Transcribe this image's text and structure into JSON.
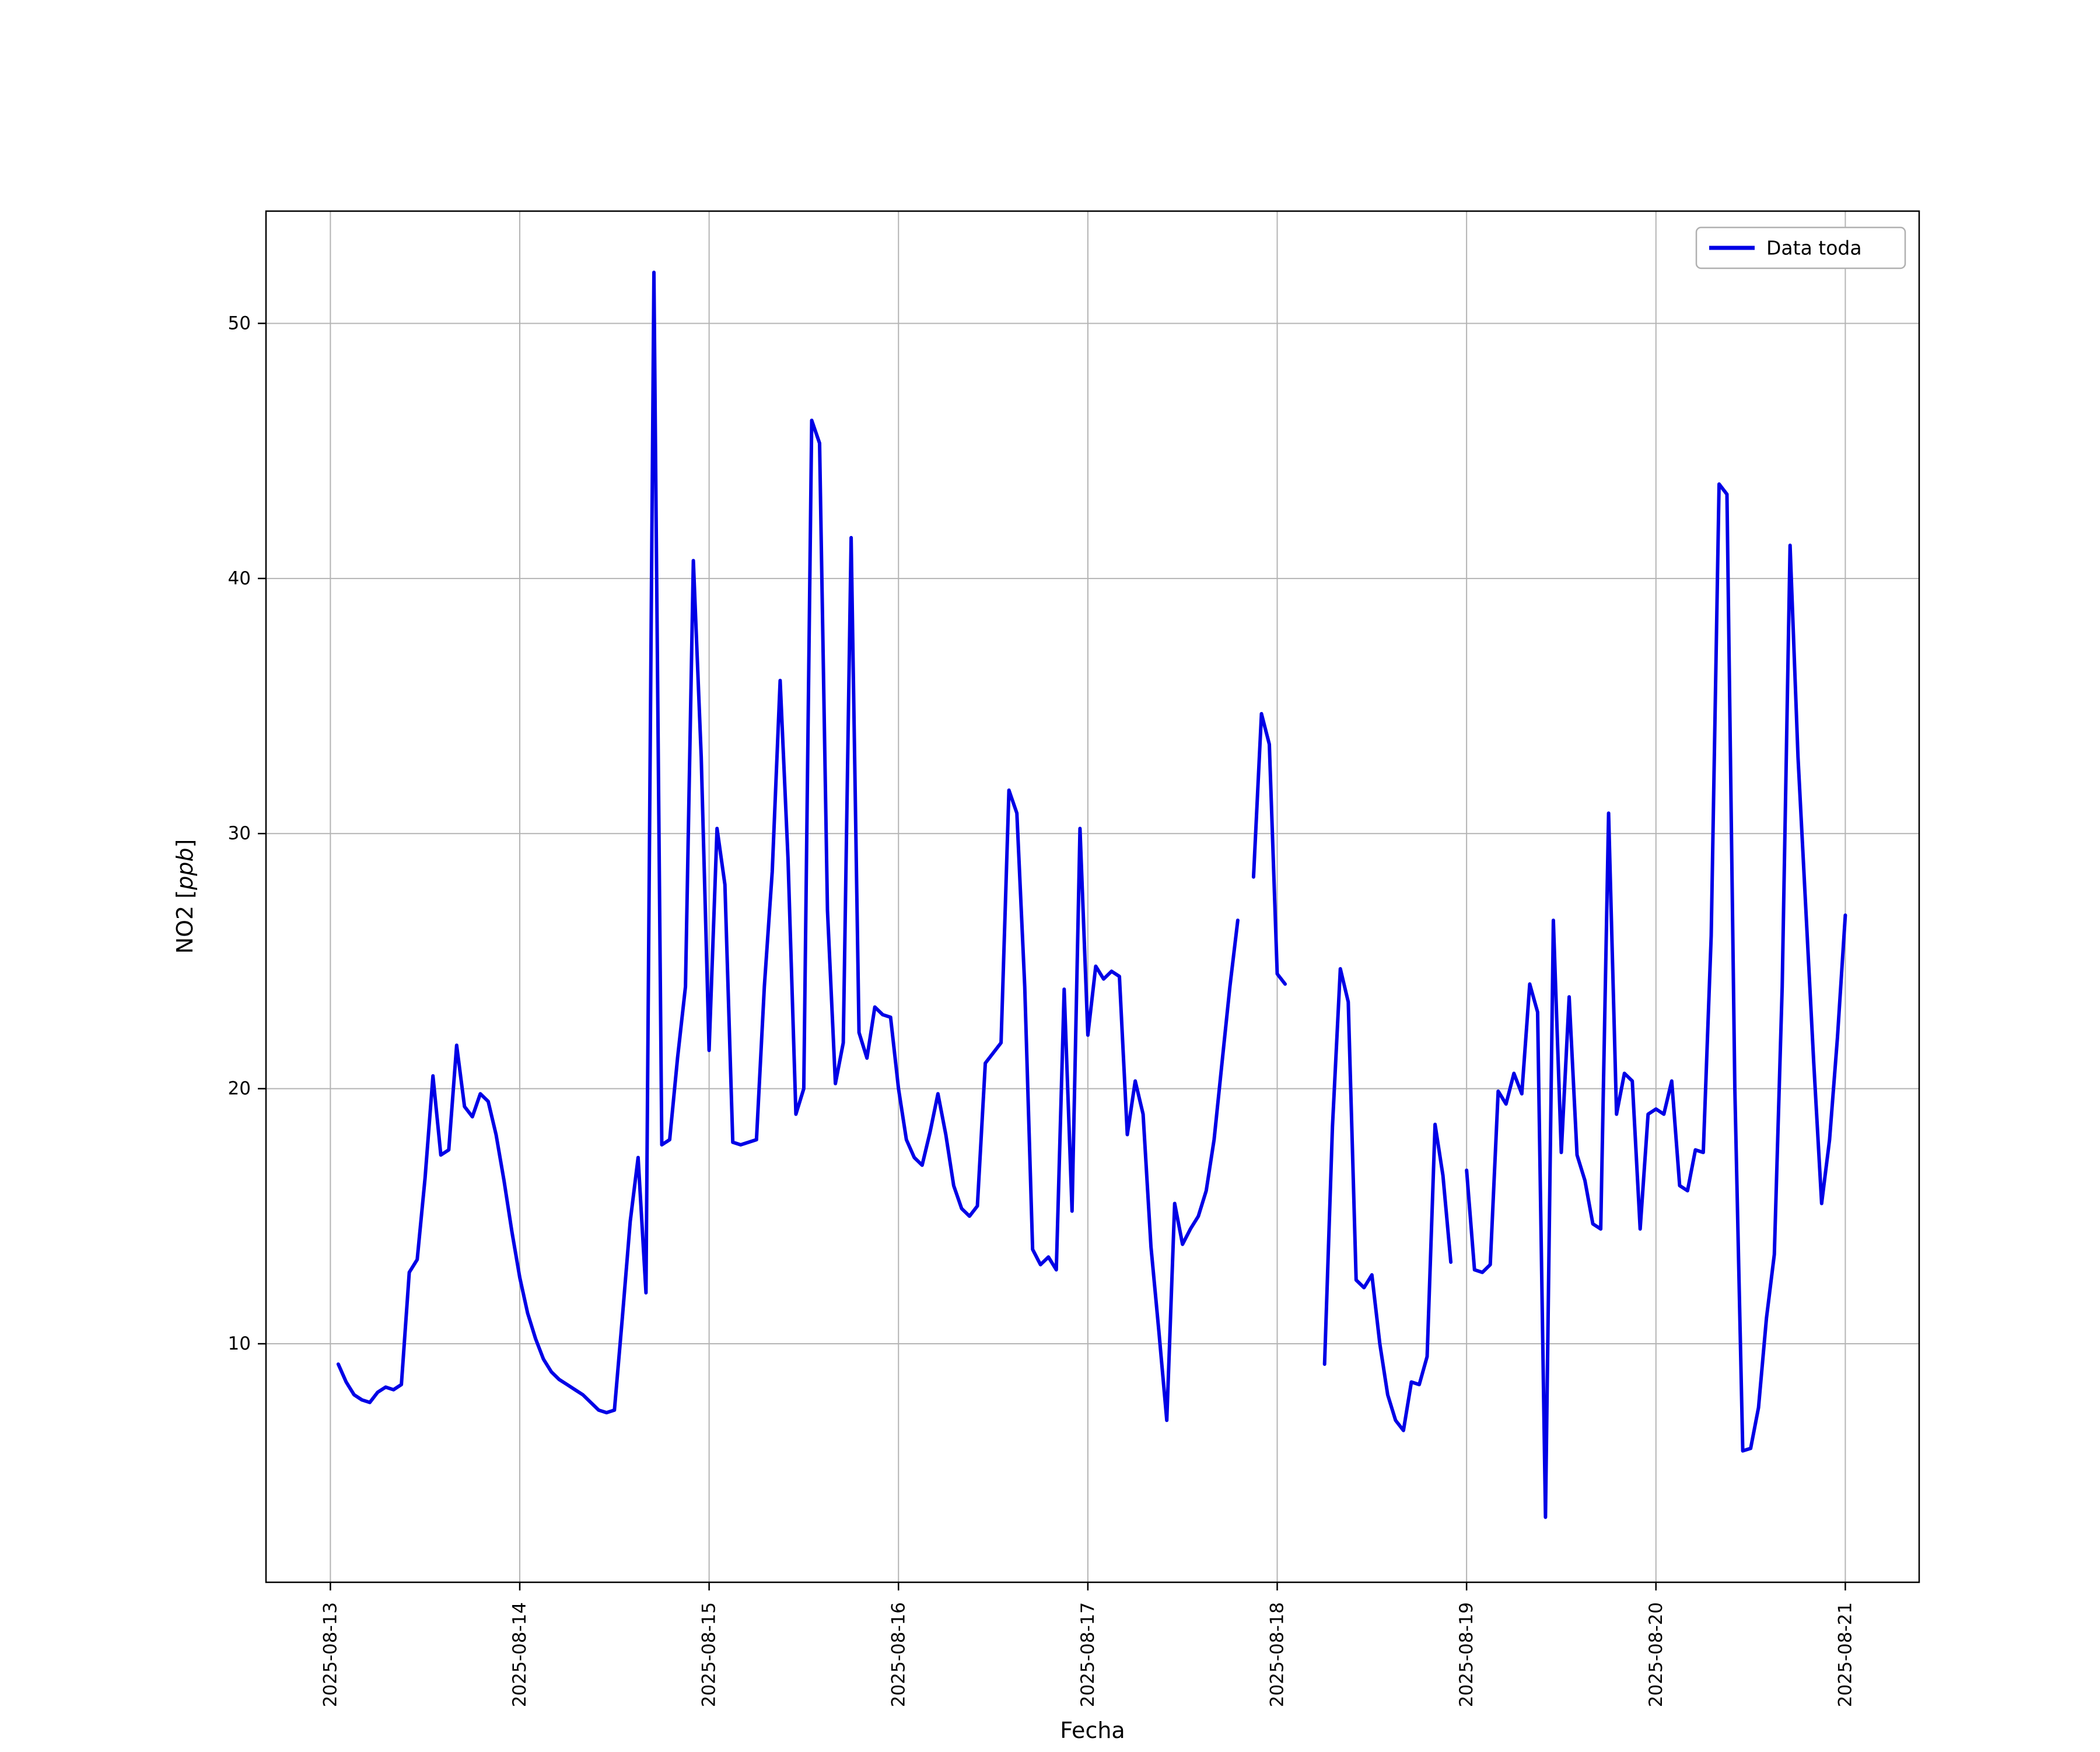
{
  "chart_data": {
    "type": "line",
    "title": "",
    "xlabel": "Fecha",
    "ylabel": "NO2 [ppb]",
    "ylabel_parts": {
      "prefix": "NO2 [",
      "italic": "ppb",
      "suffix": "]"
    },
    "grid": true,
    "grid_color": "#b4b4b4",
    "line_color": "#0000e6",
    "legend": {
      "position": "upper right",
      "entries": [
        {
          "label": "Data toda",
          "color": "#0000e6"
        }
      ]
    },
    "x_tick_labels": [
      "2025-08-13",
      "2025-08-14",
      "2025-08-15",
      "2025-08-16",
      "2025-08-17",
      "2025-08-18",
      "2025-08-19",
      "2025-08-20",
      "2025-08-21"
    ],
    "x_tick_days": [
      0,
      1,
      2,
      3,
      4,
      5,
      6,
      7,
      8
    ],
    "y_ticks": [
      10,
      20,
      30,
      40,
      50
    ],
    "xlim_days": [
      -0.34,
      8.39
    ],
    "ylim": [
      0.65,
      54.4
    ],
    "series": [
      {
        "name": "Data toda",
        "color": "#0000e6",
        "start_day_offset": 0.041667,
        "step_days": 0.041667,
        "values": [
          9.2,
          8.5,
          8.0,
          7.8,
          7.7,
          8.1,
          8.3,
          8.2,
          8.4,
          12.8,
          13.3,
          16.5,
          20.5,
          17.4,
          17.6,
          21.7,
          19.3,
          18.9,
          19.8,
          19.5,
          18.2,
          16.4,
          14.4,
          12.6,
          11.2,
          10.2,
          9.4,
          8.9,
          8.6,
          8.4,
          8.2,
          8.0,
          7.7,
          7.4,
          7.3,
          7.4,
          11.0,
          14.8,
          17.3,
          12.0,
          52.0,
          17.8,
          18.0,
          21.2,
          24.0,
          40.7,
          33.0,
          21.5,
          30.2,
          28.0,
          17.9,
          17.8,
          17.9,
          18.0,
          24.0,
          28.5,
          36.0,
          29.0,
          19.0,
          20.0,
          46.2,
          45.3,
          27.0,
          20.2,
          21.8,
          41.6,
          22.2,
          21.2,
          23.2,
          22.9,
          22.8,
          20.0,
          18.0,
          17.3,
          17.0,
          18.3,
          19.8,
          18.2,
          16.2,
          15.3,
          15.0,
          15.4,
          21.0,
          21.4,
          21.8,
          31.7,
          30.8,
          24.0,
          13.7,
          13.1,
          13.4,
          12.9,
          23.9,
          15.2,
          30.2,
          22.1,
          24.8,
          24.3,
          24.6,
          24.4,
          18.2,
          20.3,
          19.0,
          13.8,
          10.5,
          7.0,
          15.5,
          13.9,
          14.5,
          15.0,
          16.0,
          18.0,
          21.0,
          24.0,
          26.6,
          null,
          28.3,
          34.7,
          33.5,
          24.5,
          24.1,
          null,
          null,
          null,
          null,
          9.2,
          18.5,
          24.7,
          23.4,
          12.5,
          12.2,
          12.7,
          10.0,
          8.0,
          7.0,
          6.6,
          8.5,
          8.4,
          9.5,
          18.6,
          16.6,
          13.2,
          null,
          16.8,
          12.9,
          12.8,
          13.1,
          19.9,
          19.4,
          20.6,
          19.8,
          24.1,
          23.0,
          3.2,
          26.6,
          17.5,
          23.6,
          17.4,
          16.4,
          14.7,
          14.5,
          30.8,
          19.0,
          20.6,
          20.3,
          14.5,
          19.0,
          19.2,
          19.0,
          20.3,
          16.2,
          16.0,
          17.6,
          17.5,
          26.0,
          43.7,
          43.3,
          20.0,
          5.8,
          5.9,
          7.5,
          11.0,
          13.5,
          24.0,
          41.3,
          33.0,
          27.0,
          21.0,
          15.5,
          18.0,
          22.0,
          26.8
        ]
      }
    ]
  }
}
